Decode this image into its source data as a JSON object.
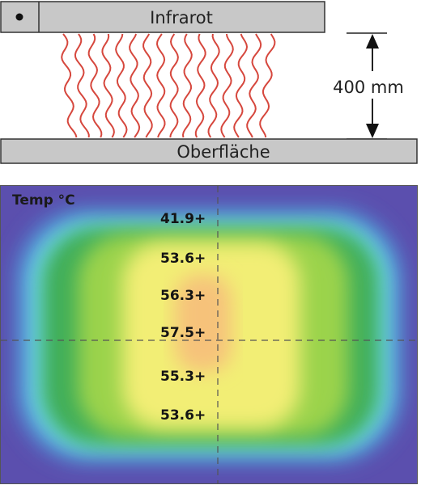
{
  "heater": {
    "label": "Infrarot"
  },
  "surface": {
    "label": "Oberfläche"
  },
  "distance": {
    "label": "400 mm"
  },
  "thermal": {
    "legend": "Temp °C",
    "readings": [
      "41.9+",
      "53.6+",
      "56.3+",
      "57.5+",
      "55.3+",
      "53.6+"
    ]
  },
  "colors": {
    "heater_bar": "#c8c8c8",
    "surface_bar": "#c8c8c8",
    "waves": "#d6473d",
    "hot": "#f6b872",
    "warm": "#f4f27a",
    "mid": "#55c04a",
    "cool": "#6cd9f0",
    "cold": "#5a4fb0"
  }
}
